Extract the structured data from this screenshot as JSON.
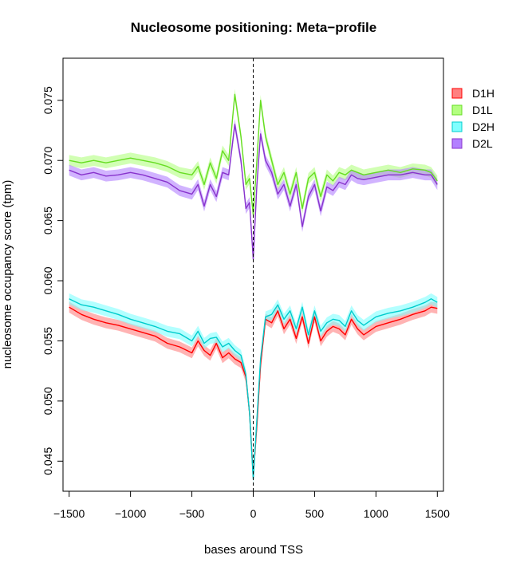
{
  "chart_data": {
    "type": "line",
    "title": "Nucleosome positioning: Meta−profile",
    "xlabel": "bases around TSS",
    "ylabel": "nucleosome occupancy score (tpm)",
    "xlim": [
      -1550,
      1550
    ],
    "ylim": [
      0.0425,
      0.0785
    ],
    "xticks": [
      -1500,
      -1000,
      -500,
      0,
      500,
      1000,
      1500
    ],
    "xtick_labels": [
      "−1500",
      "−1000",
      "−500",
      "0",
      "500",
      "1000",
      "1500"
    ],
    "yticks": [
      0.045,
      0.05,
      0.055,
      0.06,
      0.065,
      0.07,
      0.075
    ],
    "ytick_labels": [
      "0.045",
      "0.050",
      "0.055",
      "0.060",
      "0.065",
      "0.070",
      "0.075"
    ],
    "vline_x": 0,
    "grid": false,
    "legend_position": "top-right",
    "x": [
      -1500,
      -1400,
      -1300,
      -1200,
      -1100,
      -1000,
      -900,
      -800,
      -700,
      -600,
      -500,
      -450,
      -400,
      -350,
      -300,
      -250,
      -200,
      -150,
      -100,
      -60,
      -30,
      0,
      30,
      60,
      100,
      150,
      200,
      250,
      300,
      350,
      400,
      450,
      500,
      550,
      600,
      650,
      700,
      750,
      800,
      850,
      900,
      1000,
      1100,
      1200,
      1300,
      1400,
      1450,
      1500
    ],
    "series": [
      {
        "name": "D1H",
        "color": "#ff0000",
        "fill": "#ff8080",
        "values": [
          0.0578,
          0.0572,
          0.0568,
          0.0565,
          0.0563,
          0.056,
          0.0557,
          0.0554,
          0.0548,
          0.0545,
          0.054,
          0.055,
          0.0542,
          0.0538,
          0.0548,
          0.0536,
          0.054,
          0.0535,
          0.0532,
          0.052,
          0.049,
          0.0437,
          0.048,
          0.053,
          0.0568,
          0.0565,
          0.0575,
          0.056,
          0.0568,
          0.0552,
          0.057,
          0.0548,
          0.057,
          0.055,
          0.0558,
          0.0562,
          0.056,
          0.0555,
          0.0568,
          0.056,
          0.0555,
          0.0562,
          0.0565,
          0.0568,
          0.0572,
          0.0575,
          0.0578,
          0.0577
        ]
      },
      {
        "name": "D1L",
        "color": "#66dd22",
        "fill": "#b3ff80",
        "values": [
          0.07,
          0.0698,
          0.07,
          0.0698,
          0.07,
          0.0702,
          0.07,
          0.0698,
          0.0695,
          0.069,
          0.0688,
          0.0695,
          0.068,
          0.0698,
          0.0685,
          0.0708,
          0.07,
          0.0755,
          0.072,
          0.068,
          0.0685,
          0.0655,
          0.07,
          0.075,
          0.072,
          0.07,
          0.068,
          0.069,
          0.0672,
          0.069,
          0.066,
          0.0685,
          0.069,
          0.067,
          0.0688,
          0.0683,
          0.069,
          0.0688,
          0.0692,
          0.069,
          0.0688,
          0.069,
          0.0692,
          0.069,
          0.0693,
          0.0692,
          0.069,
          0.0683
        ]
      },
      {
        "name": "D2H",
        "color": "#00cccc",
        "fill": "#80ffff",
        "values": [
          0.0585,
          0.058,
          0.0578,
          0.0575,
          0.0572,
          0.0568,
          0.0565,
          0.0562,
          0.0558,
          0.0556,
          0.055,
          0.0558,
          0.0548,
          0.0552,
          0.0553,
          0.0545,
          0.0548,
          0.0542,
          0.0538,
          0.0522,
          0.049,
          0.0435,
          0.0485,
          0.0535,
          0.057,
          0.0572,
          0.058,
          0.0568,
          0.0575,
          0.056,
          0.0578,
          0.0555,
          0.0575,
          0.0558,
          0.0565,
          0.0568,
          0.0567,
          0.0562,
          0.0575,
          0.0567,
          0.0563,
          0.057,
          0.0573,
          0.0575,
          0.0578,
          0.0582,
          0.0585,
          0.0582
        ]
      },
      {
        "name": "D2L",
        "color": "#8833cc",
        "fill": "#b380ff",
        "values": [
          0.0692,
          0.0688,
          0.069,
          0.0687,
          0.0688,
          0.069,
          0.0688,
          0.0685,
          0.0682,
          0.0675,
          0.0672,
          0.068,
          0.0662,
          0.068,
          0.067,
          0.069,
          0.0688,
          0.073,
          0.07,
          0.066,
          0.0665,
          0.0618,
          0.068,
          0.0722,
          0.07,
          0.069,
          0.0672,
          0.068,
          0.0662,
          0.068,
          0.0645,
          0.067,
          0.068,
          0.0658,
          0.0678,
          0.0675,
          0.0682,
          0.068,
          0.0688,
          0.0685,
          0.0684,
          0.0686,
          0.0688,
          0.0688,
          0.069,
          0.0688,
          0.0688,
          0.068
        ]
      }
    ]
  }
}
